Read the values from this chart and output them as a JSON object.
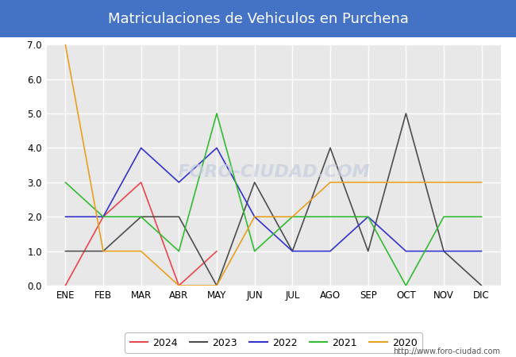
{
  "title": "Matriculaciones de Vehiculos en Purchena",
  "months": [
    "ENE",
    "FEB",
    "MAR",
    "ABR",
    "MAY",
    "JUN",
    "JUL",
    "AGO",
    "SEP",
    "OCT",
    "NOV",
    "DIC"
  ],
  "series": {
    "2024": {
      "color": "#e8474c",
      "values": [
        0,
        2,
        3,
        0,
        1,
        null,
        null,
        null,
        null,
        null,
        null,
        null
      ]
    },
    "2023": {
      "color": "#4d4d4d",
      "values": [
        1,
        1,
        2,
        2,
        0,
        3,
        1,
        4,
        1,
        5,
        1,
        0
      ]
    },
    "2022": {
      "color": "#3333cc",
      "values": [
        2,
        2,
        4,
        3,
        4,
        2,
        1,
        1,
        2,
        1,
        1,
        1
      ]
    },
    "2021": {
      "color": "#33bb33",
      "values": [
        3,
        2,
        2,
        1,
        5,
        1,
        2,
        2,
        2,
        0,
        2,
        2
      ]
    },
    "2020": {
      "color": "#e8a020",
      "values": [
        7,
        1,
        1,
        0,
        0,
        2,
        2,
        3,
        3,
        3,
        3,
        3
      ]
    }
  },
  "ylim": [
    0,
    7
  ],
  "yticks": [
    0.0,
    1.0,
    2.0,
    3.0,
    4.0,
    5.0,
    6.0,
    7.0
  ],
  "title_bg_color": "#4472c4",
  "title_text_color": "#ffffff",
  "fig_bg_color": "#ffffff",
  "plot_bg_color": "#e8e8e8",
  "grid_color": "#ffffff",
  "watermark_text": "FORO-CIUDAD.COM",
  "watermark_color": "#c5cfe0",
  "watermark_alpha": 0.7,
  "url": "http://www.foro-ciudad.com",
  "legend_order": [
    "2024",
    "2023",
    "2022",
    "2021",
    "2020"
  ],
  "title_fontsize": 13,
  "tick_fontsize": 8.5,
  "linewidth": 1.2
}
